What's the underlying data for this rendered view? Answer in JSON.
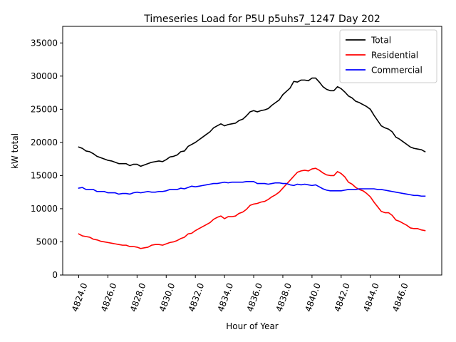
{
  "chart_data": {
    "type": "line",
    "title": "Timeseries Load for P5U p5uhs7_1247  Day 202",
    "xlabel": "Hour of Year",
    "ylabel": "kW total",
    "xlim": [
      4822.9,
      4848.9
    ],
    "ylim": [
      0,
      37500
    ],
    "xticks": [
      4824,
      4826,
      4828,
      4830,
      4832,
      4834,
      4836,
      4838,
      4840,
      4842,
      4844,
      4846
    ],
    "xtick_labels": [
      "4824.0",
      "4826.0",
      "4828.0",
      "4830.0",
      "4832.0",
      "4834.0",
      "4836.0",
      "4838.0",
      "4840.0",
      "4842.0",
      "4844.0",
      "4846.0"
    ],
    "yticks": [
      0,
      5000,
      10000,
      15000,
      20000,
      25000,
      30000,
      35000
    ],
    "ytick_labels": [
      "0",
      "5000",
      "10000",
      "15000",
      "20000",
      "25000",
      "30000",
      "35000"
    ],
    "legend_position": "top-right",
    "grid": false,
    "x": [
      4824.0,
      4824.25,
      4824.5,
      4824.75,
      4825.0,
      4825.25,
      4825.5,
      4825.75,
      4826.0,
      4826.25,
      4826.5,
      4826.75,
      4827.0,
      4827.25,
      4827.5,
      4827.75,
      4828.0,
      4828.25,
      4828.5,
      4828.75,
      4829.0,
      4829.25,
      4829.5,
      4829.75,
      4830.0,
      4830.25,
      4830.5,
      4830.75,
      4831.0,
      4831.25,
      4831.5,
      4831.75,
      4832.0,
      4832.25,
      4832.5,
      4832.75,
      4833.0,
      4833.25,
      4833.5,
      4833.75,
      4834.0,
      4834.25,
      4834.5,
      4834.75,
      4835.0,
      4835.25,
      4835.5,
      4835.75,
      4836.0,
      4836.25,
      4836.5,
      4836.75,
      4837.0,
      4837.25,
      4837.5,
      4837.75,
      4838.0,
      4838.25,
      4838.5,
      4838.75,
      4839.0,
      4839.25,
      4839.5,
      4839.75,
      4840.0,
      4840.25,
      4840.5,
      4840.75,
      4841.0,
      4841.25,
      4841.5,
      4841.75,
      4842.0,
      4842.25,
      4842.5,
      4842.75,
      4843.0,
      4843.25,
      4843.5,
      4843.75,
      4844.0,
      4844.25,
      4844.5,
      4844.75,
      4845.0,
      4845.25,
      4845.5,
      4845.75,
      4846.0,
      4846.25,
      4846.5,
      4846.75,
      4847.0,
      4847.25,
      4847.5,
      4847.75
    ],
    "series": [
      {
        "name": "Total",
        "color": "#000000",
        "values": [
          19300,
          19100,
          18700,
          18600,
          18300,
          17900,
          17700,
          17500,
          17300,
          17200,
          17000,
          16800,
          16800,
          16800,
          16500,
          16700,
          16700,
          16400,
          16600,
          16800,
          17000,
          17100,
          17200,
          17100,
          17400,
          17800,
          17900,
          18100,
          18600,
          18700,
          19400,
          19700,
          20000,
          20400,
          20800,
          21200,
          21600,
          22200,
          22500,
          22800,
          22500,
          22700,
          22800,
          22900,
          23300,
          23500,
          24000,
          24600,
          24800,
          24600,
          24800,
          24900,
          25100,
          25600,
          26000,
          26400,
          27200,
          27700,
          28200,
          29200,
          29100,
          29400,
          29400,
          29300,
          29700,
          29700,
          29100,
          28400,
          28000,
          27800,
          27800,
          28400,
          28100,
          27600,
          27000,
          26700,
          26200,
          26000,
          25700,
          25400,
          25000,
          24100,
          23300,
          22500,
          22200,
          22000,
          21600,
          20800,
          20500,
          20100,
          19700,
          19300,
          19100,
          19000,
          18900,
          18600
        ]
      },
      {
        "name": "Residential",
        "color": "#ff0000",
        "values": [
          6200,
          5900,
          5800,
          5700,
          5400,
          5300,
          5100,
          5000,
          4900,
          4800,
          4700,
          4600,
          4500,
          4500,
          4300,
          4300,
          4200,
          4000,
          4100,
          4200,
          4500,
          4600,
          4600,
          4500,
          4700,
          4900,
          5000,
          5200,
          5500,
          5700,
          6200,
          6300,
          6700,
          7000,
          7300,
          7600,
          7900,
          8400,
          8700,
          8900,
          8500,
          8800,
          8800,
          8900,
          9300,
          9500,
          9900,
          10500,
          10700,
          10800,
          11000,
          11100,
          11400,
          11800,
          12100,
          12500,
          13100,
          13700,
          14300,
          14900,
          15500,
          15700,
          15800,
          15700,
          16000,
          16100,
          15800,
          15400,
          15100,
          15000,
          15000,
          15600,
          15300,
          14800,
          14000,
          13700,
          13200,
          12900,
          12700,
          12300,
          11800,
          11000,
          10300,
          9600,
          9400,
          9400,
          9000,
          8300,
          8100,
          7800,
          7500,
          7100,
          7000,
          7000,
          6800,
          6700
        ]
      },
      {
        "name": "Commercial",
        "color": "#0000ff",
        "values": [
          13100,
          13200,
          12900,
          12900,
          12900,
          12600,
          12600,
          12600,
          12400,
          12400,
          12400,
          12200,
          12300,
          12300,
          12200,
          12400,
          12500,
          12400,
          12500,
          12600,
          12500,
          12500,
          12600,
          12600,
          12700,
          12900,
          12900,
          12900,
          13100,
          13000,
          13200,
          13400,
          13300,
          13400,
          13500,
          13600,
          13700,
          13800,
          13800,
          13900,
          14000,
          13900,
          14000,
          14000,
          14000,
          14000,
          14100,
          14100,
          14100,
          13800,
          13800,
          13800,
          13700,
          13800,
          13900,
          13900,
          13800,
          13800,
          13600,
          13500,
          13700,
          13600,
          13700,
          13600,
          13500,
          13600,
          13300,
          13000,
          12800,
          12700,
          12700,
          12700,
          12700,
          12800,
          12900,
          12900,
          12900,
          13000,
          13000,
          13000,
          13000,
          13000,
          12900,
          12900,
          12800,
          12700,
          12600,
          12500,
          12400,
          12300,
          12200,
          12100,
          12000,
          12000,
          11900,
          11900
        ]
      }
    ]
  }
}
